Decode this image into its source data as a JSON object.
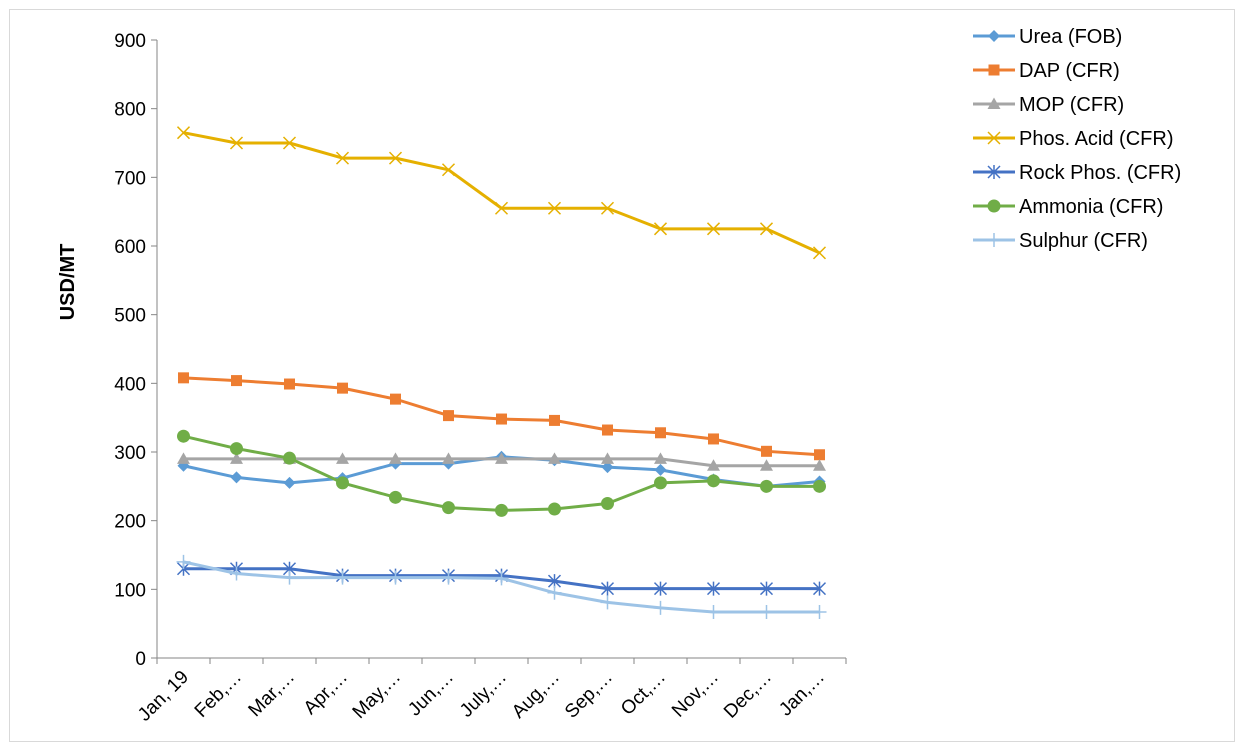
{
  "chart_data": {
    "type": "line",
    "title": "",
    "xlabel": "",
    "ylabel": "USD/MT",
    "ylim": [
      0,
      900
    ],
    "yticks": [
      0,
      100,
      200,
      300,
      400,
      500,
      600,
      700,
      800,
      900
    ],
    "categories": [
      "Jan, 19",
      "Feb,…",
      "Mar,…",
      "Apr,…",
      "May,…",
      "Jun,…",
      "July,…",
      "Aug,…",
      "Sep,…",
      "Oct,…",
      "Nov,…",
      "Dec,…",
      "Jan,…"
    ],
    "grid": false,
    "legend": "right",
    "series": [
      {
        "name": "Urea (FOB)",
        "color": "#5b9bd5",
        "marker": "diamond",
        "values": [
          280,
          263,
          255,
          262,
          283,
          283,
          293,
          288,
          278,
          274,
          260,
          250,
          257
        ]
      },
      {
        "name": "DAP (CFR)",
        "color": "#ed7d31",
        "marker": "square",
        "values": [
          408,
          404,
          399,
          393,
          377,
          353,
          348,
          346,
          332,
          328,
          319,
          301,
          296
        ]
      },
      {
        "name": "MOP (CFR)",
        "color": "#a5a5a5",
        "marker": "triangle",
        "values": [
          290,
          290,
          290,
          290,
          290,
          290,
          290,
          290,
          290,
          290,
          280,
          280,
          280
        ]
      },
      {
        "name": "Phos. Acid (CFR)",
        "color": "#ffc000",
        "stroke": "#e5b000",
        "marker": "x",
        "values": [
          765,
          750,
          750,
          728,
          728,
          711,
          655,
          655,
          655,
          625,
          625,
          625,
          590
        ]
      },
      {
        "name": "Rock Phos. (CFR)",
        "color": "#4472c4",
        "marker": "asterisk",
        "values": [
          130,
          130,
          130,
          120,
          120,
          120,
          120,
          112,
          101,
          101,
          101,
          101,
          101
        ]
      },
      {
        "name": "Ammonia (CFR)",
        "color": "#70ad47",
        "marker": "circle",
        "values": [
          323,
          305,
          291,
          255,
          234,
          219,
          215,
          217,
          225,
          255,
          258,
          250,
          250
        ]
      },
      {
        "name": "Sulphur (CFR)",
        "color": "#9dc3e6",
        "marker": "plus",
        "values": [
          140,
          123,
          117,
          117,
          117,
          117,
          116,
          95,
          81,
          73,
          67,
          67,
          67
        ]
      }
    ]
  }
}
